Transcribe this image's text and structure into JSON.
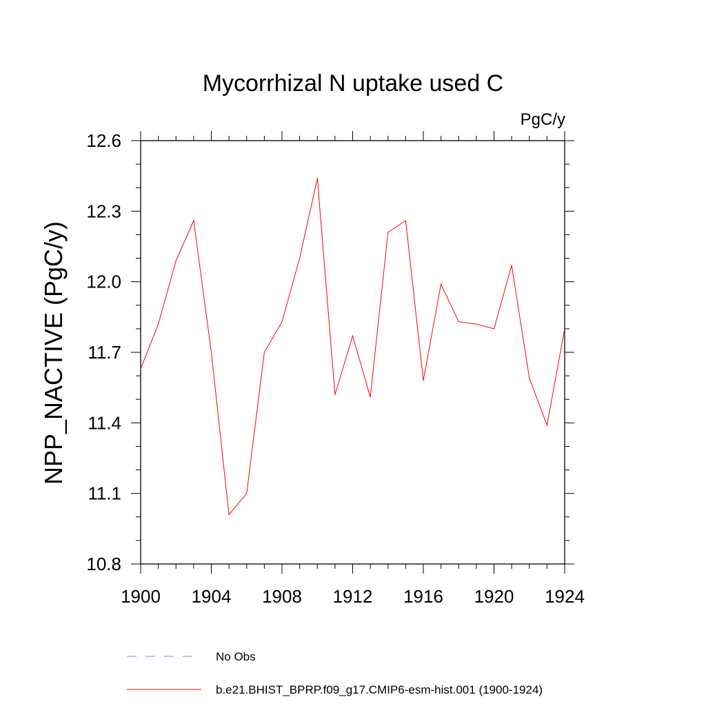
{
  "chart_data": {
    "type": "line",
    "title": "Mycorrhizal N uptake used C",
    "units_label": "PgC/y",
    "ylabel": "NPP_NACTIVE  (PgC/y)",
    "xlabel": "",
    "xlim": [
      1900,
      1924
    ],
    "ylim": [
      10.8,
      12.6
    ],
    "x_ticks": [
      1900,
      1904,
      1908,
      1912,
      1916,
      1920,
      1924
    ],
    "x_tick_labels": [
      "1900",
      "1904",
      "1908",
      "1912",
      "1916",
      "1920",
      "1924"
    ],
    "y_ticks": [
      10.8,
      11.1,
      11.4,
      11.7,
      12.0,
      12.3,
      12.6
    ],
    "y_tick_labels": [
      "10.8",
      "11.1",
      "11.4",
      "11.7",
      "12.0",
      "12.3",
      "12.6"
    ],
    "grid": false,
    "legend_position": "bottom",
    "series": [
      {
        "name": "b.e21.BHIST_BPRP.f09_g17.CMIP6-esm-hist.001 (1900-1924)",
        "color": "#ff0000",
        "style": "solid",
        "x": [
          1900,
          1901,
          1902,
          1903,
          1904,
          1905,
          1906,
          1907,
          1908,
          1909,
          1910,
          1911,
          1912,
          1913,
          1914,
          1915,
          1916,
          1917,
          1918,
          1919,
          1920,
          1921,
          1922,
          1923,
          1924
        ],
        "values": [
          11.63,
          11.82,
          12.09,
          12.26,
          11.7,
          11.01,
          11.1,
          11.7,
          11.83,
          12.1,
          12.44,
          11.52,
          11.77,
          11.51,
          12.21,
          12.26,
          11.58,
          11.99,
          11.83,
          11.82,
          11.8,
          12.07,
          11.59,
          11.39,
          11.8
        ]
      }
    ],
    "legend": [
      {
        "label": "No Obs",
        "color": "#8080ff",
        "style": "dashed"
      },
      {
        "label": "b.e21.BHIST_BPRP.f09_g17.CMIP6-esm-hist.001 (1900-1924)",
        "color": "#ff0000",
        "style": "solid"
      }
    ]
  }
}
